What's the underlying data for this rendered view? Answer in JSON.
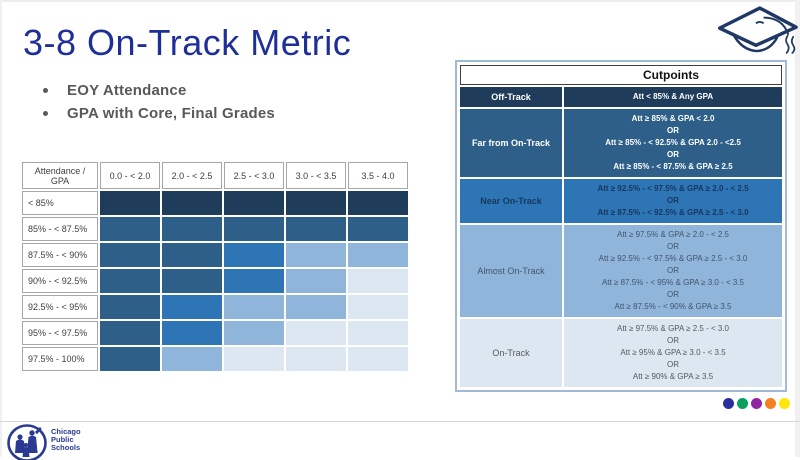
{
  "slide": {
    "title": "3-8 On-Track Metric",
    "bullets": [
      "EOY Attendance",
      "GPA with Core, Final Grades"
    ]
  },
  "chart_data": {
    "type": "heatmap",
    "title": "3-8 On-Track Metric: EOY Attendance vs GPA category matrix",
    "corner_label": [
      "Attendance /",
      "GPA"
    ],
    "x_categories": [
      "0.0 - < 2.0",
      "2.0 - < 2.5",
      "2.5 - < 3.0",
      "3.0 - < 3.5",
      "3.5 - 4.0"
    ],
    "y_categories": [
      "< 85%",
      "85% - < 87.5%",
      "87.5% - < 90%",
      "90% - < 92.5%",
      "92.5% - < 95%",
      "95% - < 97.5%",
      "97.5% - 100%"
    ],
    "cells": [
      [
        "off",
        "off",
        "off",
        "off",
        "off"
      ],
      [
        "far",
        "far",
        "far",
        "far",
        "far"
      ],
      [
        "far",
        "far",
        "near",
        "almost",
        "almost"
      ],
      [
        "far",
        "far",
        "near",
        "almost",
        "on"
      ],
      [
        "far",
        "near",
        "almost",
        "almost",
        "on"
      ],
      [
        "far",
        "near",
        "almost",
        "on",
        "on"
      ],
      [
        "far",
        "almost",
        "on",
        "on",
        "on"
      ]
    ],
    "legend": {
      "off": "Off-Track",
      "far": "Far from On-Track",
      "near": "Near On-Track",
      "almost": "Almost On-Track",
      "on": "On-Track"
    },
    "colors": {
      "off": "#1F3D5B",
      "far": "#2D5F88",
      "near": "#2E75B6",
      "almost": "#8FB5DB",
      "on": "#DCE7F2"
    }
  },
  "cutpoints": {
    "title": "Cutpoints",
    "or_label": "OR",
    "rows": [
      {
        "key": "off",
        "label": "Off-Track",
        "bg": "#1F3D5B",
        "label_color": "#FFFFFF",
        "text_color": "#FFFFFF",
        "bold": true,
        "rules": [
          "Att < 85% & Any GPA"
        ]
      },
      {
        "key": "far",
        "label": "Far from On-Track",
        "bg": "#2D5F88",
        "label_color": "#FFFFFF",
        "text_color": "#FFFFFF",
        "bold": true,
        "rules": [
          "Att ≥ 85% & GPA < 2.0",
          "Att ≥ 85% - < 92.5% & GPA 2.0 - <2.5",
          "Att ≥ 85% - < 87.5% & GPA ≥ 2.5"
        ]
      },
      {
        "key": "near",
        "label": "Near On-Track",
        "bg": "#2E75B6",
        "label_color": "#17365D",
        "text_color": "#17365D",
        "bold": true,
        "rules": [
          "Att ≥ 92.5% - < 97.5% & GPA ≥ 2.0 - < 2.5",
          "Att ≥ 87.5% - < 92.5% & GPA ≥ 2.5 - < 3.0"
        ]
      },
      {
        "key": "almost",
        "label": "Almost On-Track",
        "bg": "#8FB5DB",
        "label_color": "#44546A",
        "text_color": "#44546A",
        "bold": false,
        "rules": [
          "Att ≥ 97.5% & GPA ≥ 2.0 - < 2.5",
          "Att ≥ 92.5% - < 97.5% & GPA ≥ 2.5 - < 3.0",
          "Att ≥ 87.5% - < 95% & GPA ≥ 3.0 - < 3.5",
          "Att ≥ 87.5% - < 90% & GPA ≥ 3.5"
        ]
      },
      {
        "key": "on",
        "label": "On-Track",
        "bg": "#DCE7F2",
        "label_color": "#595959",
        "text_color": "#595959",
        "bold": false,
        "rules": [
          "Att ≥ 97.5% & GPA ≥ 2.5 - < 3.0",
          "Att ≥ 95% & GPA ≥ 3.0 - < 3.5",
          "Att ≥ 90% & GPA ≥ 3.5"
        ]
      }
    ]
  },
  "footer": {
    "logo_lines": [
      "Chicago",
      "Public",
      "Schools"
    ],
    "logo_color": "#2B3990",
    "dots": [
      "#2A2F9E",
      "#0AA05E",
      "#9026A3",
      "#F48120",
      "#FFE50A"
    ]
  },
  "icons": {
    "graduation_cap_color": "#1F3864"
  }
}
